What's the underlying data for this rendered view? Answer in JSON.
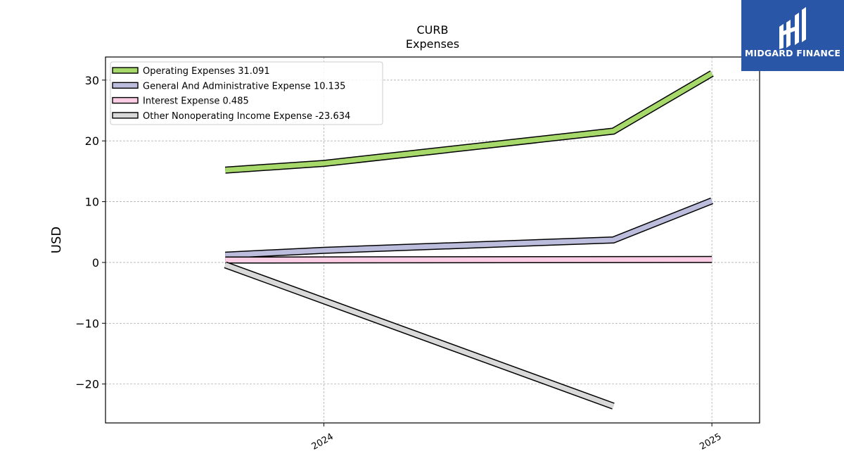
{
  "brand": {
    "name": "MIDGARD FINANCE",
    "bg_color": "#2a56a8"
  },
  "chart_data": {
    "type": "line",
    "title": "CURB",
    "subtitle": "Expenses",
    "xlabel": "",
    "ylabel": "USD",
    "x_ticks": [
      "2024",
      "2025"
    ],
    "y_ticks": [
      30,
      20,
      10,
      0,
      -10,
      -20
    ],
    "ylim": [
      -26.4,
      33.8
    ],
    "xlim": [
      "2023-06-09",
      "2025-02-15"
    ],
    "grid": true,
    "legend_position": "top-left",
    "series": [
      {
        "name": "Operating Expenses",
        "legend_value": "31.091",
        "color": "#a6d96a",
        "x": [
          "2023-09-30",
          "2024-01-01",
          "2024-09-30",
          "2025-01-01"
        ],
        "values": [
          15.2,
          16.3,
          21.6,
          31.091
        ]
      },
      {
        "name": "General And Administrative Expense",
        "legend_value": "10.135",
        "color": "#bcbddc",
        "x": [
          "2023-09-30",
          "2024-01-01",
          "2024-09-30",
          "2025-01-01"
        ],
        "values": [
          1.2,
          2.0,
          3.7,
          10.135
        ]
      },
      {
        "name": "Interest Expense",
        "legend_value": "0.485",
        "color": "#fccde5",
        "x": [
          "2023-09-30",
          "2025-01-01"
        ],
        "values": [
          0.4,
          0.485
        ]
      },
      {
        "name": "Other Nonoperating Income Expense",
        "legend_value": "-23.634",
        "color": "#d9d9d9",
        "x": [
          "2023-09-30",
          "2024-09-30"
        ],
        "values": [
          -0.4,
          -23.634
        ]
      }
    ]
  }
}
